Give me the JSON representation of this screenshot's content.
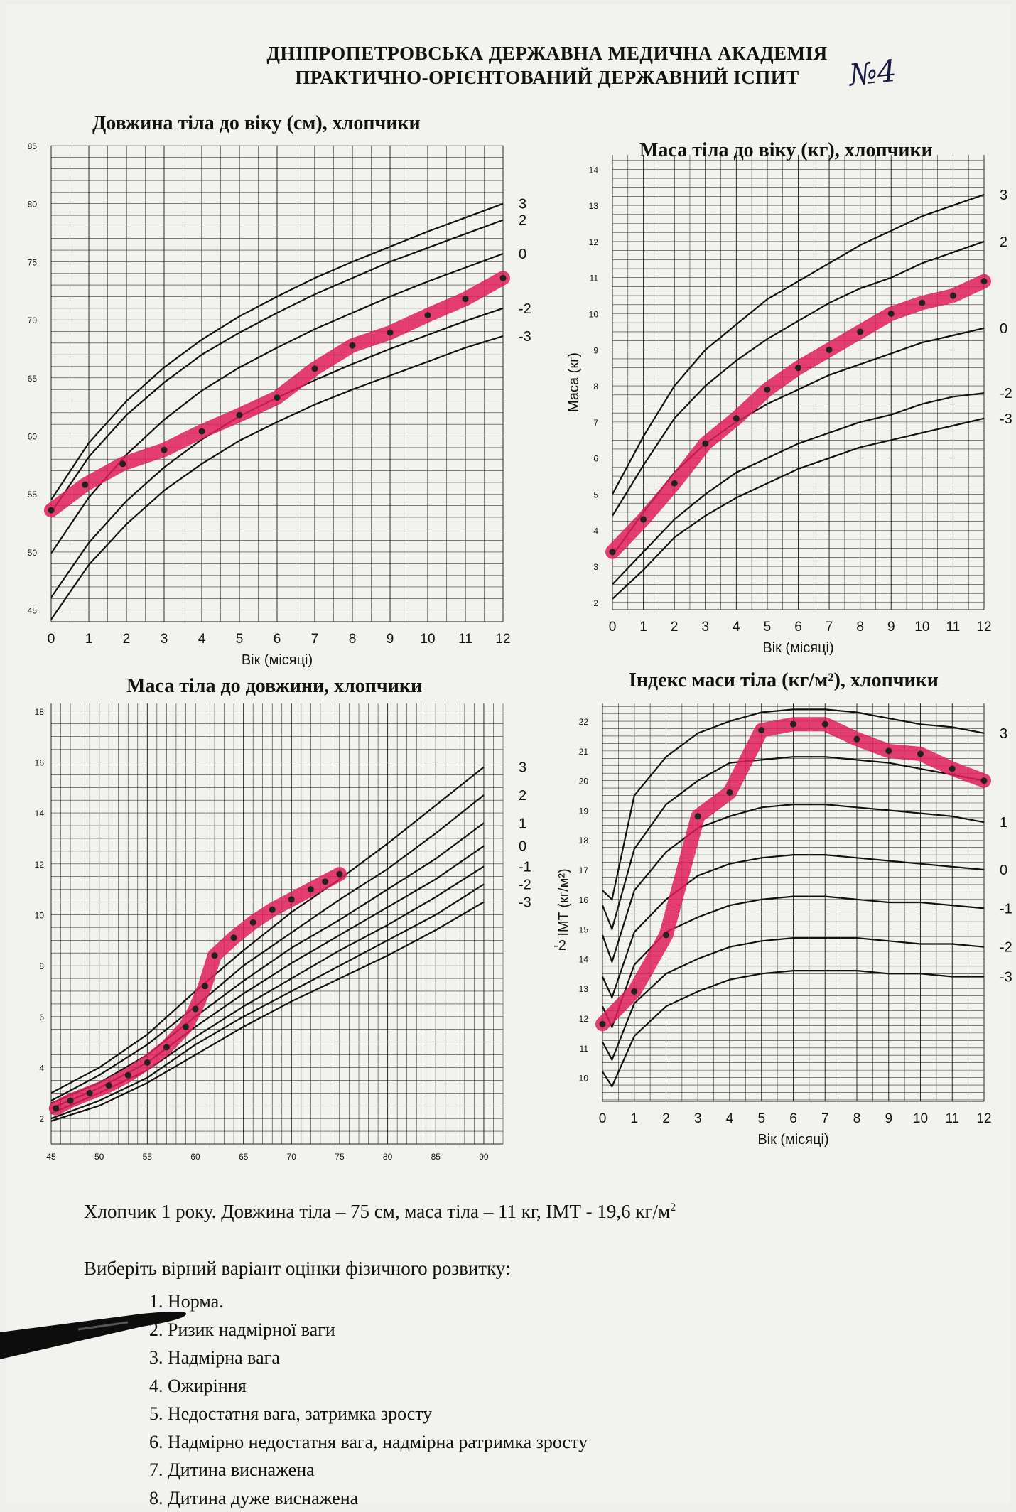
{
  "header": {
    "line1": "ДНІПРОПЕТРОВСЬКА ДЕРЖАВНА МЕДИЧНА АКАДЕМІЯ",
    "line2": "ПРАКТИЧНО-ОРІЄНТОВАНИЙ ДЕРЖАВНИЙ ІСПИТ",
    "hand_mark": "№4"
  },
  "chart_data": [
    {
      "type": "line",
      "title": "Довжина тіла до віку (см), хлопчики",
      "xlabel": "Вік (місяці)",
      "ylabel": "",
      "xlim": [
        0,
        12
      ],
      "ylim": [
        44,
        85
      ],
      "x_ticks": [
        "0",
        "1",
        "2",
        "3",
        "4",
        "5",
        "6",
        "7",
        "8",
        "9",
        "10",
        "11",
        "12"
      ],
      "y_ticks": [
        "45",
        "50",
        "55",
        "60",
        "65",
        "70",
        "75",
        "80",
        "85"
      ],
      "x_tick_values": [
        0,
        1,
        2,
        3,
        4,
        5,
        6,
        7,
        8,
        9,
        10,
        11,
        12
      ],
      "y_tick_values": [
        45,
        50,
        55,
        60,
        65,
        70,
        75,
        80,
        85
      ],
      "grid": true,
      "x_minor_step": 0.5,
      "y_minor_step": 1,
      "series": [
        {
          "name": "3",
          "x": [
            0,
            1,
            2,
            3,
            4,
            5,
            6,
            7,
            8,
            9,
            10,
            11,
            12
          ],
          "y": [
            54.5,
            59.4,
            63.0,
            65.9,
            68.3,
            70.3,
            72.0,
            73.6,
            75.0,
            76.3,
            77.6,
            78.8,
            80.0
          ]
        },
        {
          "name": "2",
          "x": [
            0,
            1,
            2,
            3,
            4,
            5,
            6,
            7,
            8,
            9,
            10,
            11,
            12
          ],
          "y": [
            53.4,
            58.2,
            61.8,
            64.6,
            67.0,
            68.9,
            70.6,
            72.2,
            73.6,
            75.0,
            76.2,
            77.4,
            78.6
          ]
        },
        {
          "name": "0",
          "x": [
            0,
            1,
            2,
            3,
            4,
            5,
            6,
            7,
            8,
            9,
            10,
            11,
            12
          ],
          "y": [
            49.9,
            54.7,
            58.4,
            61.4,
            63.9,
            65.9,
            67.6,
            69.2,
            70.6,
            72.0,
            73.3,
            74.5,
            75.7
          ]
        },
        {
          "name": "-2",
          "x": [
            0,
            1,
            2,
            3,
            4,
            5,
            6,
            7,
            8,
            9,
            10,
            11,
            12
          ],
          "y": [
            46.1,
            50.8,
            54.4,
            57.3,
            59.7,
            61.7,
            63.3,
            64.8,
            66.2,
            67.5,
            68.7,
            69.9,
            71.0
          ]
        },
        {
          "name": "-3",
          "x": [
            0,
            1,
            2,
            3,
            4,
            5,
            6,
            7,
            8,
            9,
            10,
            11,
            12
          ],
          "y": [
            44.2,
            48.9,
            52.4,
            55.3,
            57.6,
            59.6,
            61.2,
            62.7,
            64.0,
            65.2,
            66.4,
            67.6,
            68.6
          ]
        },
        {
          "name": "",
          "highlight": true,
          "x": [
            0,
            0.9,
            1.9,
            3.0,
            4.0,
            5.0,
            6.0,
            7.0,
            8.0,
            9.0,
            10.0,
            11.0,
            12.0
          ],
          "y": [
            53.6,
            55.8,
            57.6,
            58.8,
            60.4,
            61.8,
            63.3,
            65.8,
            67.8,
            68.9,
            70.4,
            71.8,
            73.6
          ]
        }
      ]
    },
    {
      "type": "line",
      "title": "Маса тіла до віку (кг), хлопчики",
      "xlabel": "Вік (місяці)",
      "ylabel": "Маса (кг)",
      "xlim": [
        0,
        12
      ],
      "ylim": [
        1.8,
        14.4
      ],
      "x_ticks": [
        "0",
        "1",
        "2",
        "3",
        "4",
        "5",
        "6",
        "7",
        "8",
        "9",
        "10",
        "11",
        "12"
      ],
      "y_ticks": [
        "2",
        "3",
        "4",
        "5",
        "6",
        "7",
        "8",
        "9",
        "10",
        "11",
        "12",
        "13",
        "14"
      ],
      "x_tick_values": [
        0,
        1,
        2,
        3,
        4,
        5,
        6,
        7,
        8,
        9,
        10,
        11,
        12
      ],
      "y_tick_values": [
        2,
        3,
        4,
        5,
        6,
        7,
        8,
        9,
        10,
        11,
        12,
        13,
        14
      ],
      "grid": true,
      "x_minor_step": 0.5,
      "y_minor_step": 0.25,
      "series": [
        {
          "name": "3",
          "x": [
            0,
            1,
            2,
            3,
            4,
            5,
            6,
            7,
            8,
            9,
            10,
            11,
            12
          ],
          "y": [
            5.0,
            6.6,
            8.0,
            9.0,
            9.7,
            10.4,
            10.9,
            11.4,
            11.9,
            12.3,
            12.7,
            13.0,
            13.3
          ]
        },
        {
          "name": "2",
          "x": [
            0,
            1,
            2,
            3,
            4,
            5,
            6,
            7,
            8,
            9,
            10,
            11,
            12
          ],
          "y": [
            4.4,
            5.8,
            7.1,
            8.0,
            8.7,
            9.3,
            9.8,
            10.3,
            10.7,
            11.0,
            11.4,
            11.7,
            12.0
          ]
        },
        {
          "name": "0",
          "x": [
            0,
            1,
            2,
            3,
            4,
            5,
            6,
            7,
            8,
            9,
            10,
            11,
            12
          ],
          "y": [
            3.3,
            4.5,
            5.6,
            6.4,
            7.0,
            7.5,
            7.9,
            8.3,
            8.6,
            8.9,
            9.2,
            9.4,
            9.6
          ]
        },
        {
          "name": "-2",
          "x": [
            0,
            1,
            2,
            3,
            4,
            5,
            6,
            7,
            8,
            9,
            10,
            11,
            12
          ],
          "y": [
            2.5,
            3.4,
            4.3,
            5.0,
            5.6,
            6.0,
            6.4,
            6.7,
            7.0,
            7.2,
            7.5,
            7.7,
            7.8
          ]
        },
        {
          "name": "-3",
          "x": [
            0,
            1,
            2,
            3,
            4,
            5,
            6,
            7,
            8,
            9,
            10,
            11,
            12
          ],
          "y": [
            2.1,
            2.9,
            3.8,
            4.4,
            4.9,
            5.3,
            5.7,
            6.0,
            6.3,
            6.5,
            6.7,
            6.9,
            7.1
          ]
        },
        {
          "name": "",
          "highlight": true,
          "x": [
            0,
            1,
            2,
            3,
            4,
            5,
            6,
            7,
            8,
            9,
            10,
            11,
            12
          ],
          "y": [
            3.4,
            4.3,
            5.3,
            6.4,
            7.1,
            7.9,
            8.5,
            9.0,
            9.5,
            10.0,
            10.3,
            10.5,
            10.9
          ]
        }
      ]
    },
    {
      "type": "line",
      "title": "Маса тіла до довжини, хлопчики",
      "xlabel": "",
      "ylabel": "",
      "xlim": [
        45,
        92
      ],
      "ylim": [
        1.0,
        18.3
      ],
      "x_ticks": [
        "45",
        "50",
        "55",
        "60",
        "65",
        "70",
        "75",
        "80",
        "85",
        "90"
      ],
      "y_ticks": [
        "2",
        "4",
        "6",
        "8",
        "10",
        "12",
        "14",
        "16",
        "18"
      ],
      "x_tick_values": [
        45,
        50,
        55,
        60,
        65,
        70,
        75,
        80,
        85,
        90
      ],
      "y_tick_values": [
        2,
        4,
        6,
        8,
        10,
        12,
        14,
        16,
        18
      ],
      "grid": true,
      "x_minor_step": 1,
      "y_minor_step": 0.5,
      "series": [
        {
          "name": "3",
          "x": [
            45,
            50,
            55,
            60,
            65,
            70,
            75,
            80,
            85,
            90
          ],
          "y": [
            3.0,
            4.0,
            5.3,
            7.0,
            8.6,
            10.1,
            11.4,
            12.8,
            14.3,
            15.8
          ]
        },
        {
          "name": "2",
          "x": [
            45,
            50,
            55,
            60,
            65,
            70,
            75,
            80,
            85,
            90
          ],
          "y": [
            2.7,
            3.7,
            4.9,
            6.4,
            8.0,
            9.3,
            10.6,
            11.8,
            13.2,
            14.7
          ]
        },
        {
          "name": "1",
          "x": [
            45,
            50,
            55,
            60,
            65,
            70,
            75,
            80,
            85,
            90
          ],
          "y": [
            2.6,
            3.4,
            4.5,
            6.0,
            7.4,
            8.7,
            9.8,
            11.0,
            12.2,
            13.6
          ]
        },
        {
          "name": "0",
          "x": [
            45,
            50,
            55,
            60,
            65,
            70,
            75,
            80,
            85,
            90
          ],
          "y": [
            2.4,
            3.2,
            4.2,
            5.6,
            6.9,
            8.1,
            9.2,
            10.3,
            11.4,
            12.7
          ]
        },
        {
          "name": "-1",
          "x": [
            45,
            50,
            55,
            60,
            65,
            70,
            75,
            80,
            85,
            90
          ],
          "y": [
            2.2,
            3.0,
            3.9,
            5.2,
            6.4,
            7.5,
            8.6,
            9.6,
            10.7,
            11.9
          ]
        },
        {
          "name": "-2",
          "x": [
            45,
            50,
            55,
            60,
            65,
            70,
            75,
            80,
            85,
            90
          ],
          "y": [
            2.0,
            2.7,
            3.6,
            4.9,
            6.0,
            7.0,
            8.0,
            9.0,
            10.0,
            11.2
          ]
        },
        {
          "name": "-3",
          "x": [
            45,
            50,
            55,
            60,
            65,
            70,
            75,
            80,
            85,
            90
          ],
          "y": [
            1.9,
            2.5,
            3.4,
            4.5,
            5.6,
            6.6,
            7.5,
            8.4,
            9.4,
            10.5
          ]
        },
        {
          "name": "",
          "highlight": true,
          "x": [
            45.5,
            47,
            49,
            51,
            53,
            55,
            57,
            59,
            60,
            61,
            62,
            64,
            66,
            68,
            70,
            72,
            73.5,
            75
          ],
          "y": [
            2.4,
            2.7,
            3.0,
            3.3,
            3.7,
            4.2,
            4.8,
            5.6,
            6.3,
            7.2,
            8.4,
            9.1,
            9.7,
            10.2,
            10.6,
            11.0,
            11.3,
            11.6
          ]
        }
      ]
    },
    {
      "type": "line",
      "title": "Індекс маси тіла (кг/м²), хлопчики",
      "xlabel": "Вік (місяці)",
      "ylabel": "ІМТ (кг/м²)",
      "xlim": [
        0,
        12
      ],
      "ylim": [
        9.2,
        22.6
      ],
      "x_ticks": [
        "0",
        "1",
        "2",
        "3",
        "4",
        "5",
        "6",
        "7",
        "8",
        "9",
        "10",
        "11",
        "12"
      ],
      "y_ticks": [
        "10",
        "11",
        "12",
        "13",
        "14",
        "15",
        "16",
        "17",
        "18",
        "19",
        "20",
        "21",
        "22"
      ],
      "x_tick_values": [
        0,
        1,
        2,
        3,
        4,
        5,
        6,
        7,
        8,
        9,
        10,
        11,
        12
      ],
      "y_tick_values": [
        10,
        11,
        12,
        13,
        14,
        15,
        16,
        17,
        18,
        19,
        20,
        21,
        22
      ],
      "grid": true,
      "x_minor_step": 0.5,
      "y_minor_step": 0.25,
      "side_mark": "-2",
      "series": [
        {
          "name": "3",
          "x": [
            0,
            0.3,
            1,
            2,
            3,
            4,
            5,
            6,
            7,
            8,
            9,
            10,
            11,
            12
          ],
          "y": [
            16.3,
            16.0,
            19.5,
            20.8,
            21.6,
            22.0,
            22.3,
            22.4,
            22.4,
            22.3,
            22.1,
            21.9,
            21.8,
            21.6
          ]
        },
        {
          "name": "",
          "x": [
            0,
            0.3,
            1,
            2,
            3,
            4,
            5,
            6,
            7,
            8,
            9,
            10,
            11,
            12
          ],
          "y": [
            15.8,
            15.0,
            17.7,
            19.2,
            20.0,
            20.6,
            20.7,
            20.8,
            20.8,
            20.7,
            20.6,
            20.4,
            20.2,
            20.0
          ]
        },
        {
          "name": "1",
          "x": [
            0,
            0.3,
            1,
            2,
            3,
            4,
            5,
            6,
            7,
            8,
            9,
            10,
            11,
            12
          ],
          "y": [
            14.8,
            13.9,
            16.3,
            17.6,
            18.4,
            18.8,
            19.1,
            19.2,
            19.2,
            19.1,
            19.0,
            18.9,
            18.8,
            18.6
          ]
        },
        {
          "name": "0",
          "x": [
            0,
            0.3,
            1,
            2,
            3,
            4,
            5,
            6,
            7,
            8,
            9,
            10,
            11,
            12
          ],
          "y": [
            13.4,
            12.7,
            14.9,
            16.0,
            16.8,
            17.2,
            17.4,
            17.5,
            17.5,
            17.4,
            17.3,
            17.2,
            17.1,
            17.0
          ]
        },
        {
          "name": "-1",
          "x": [
            0,
            0.3,
            1,
            2,
            3,
            4,
            5,
            6,
            7,
            8,
            9,
            10,
            11,
            12
          ],
          "y": [
            12.4,
            11.7,
            13.8,
            14.9,
            15.4,
            15.8,
            16.0,
            16.1,
            16.1,
            16.0,
            15.9,
            15.9,
            15.8,
            15.7
          ]
        },
        {
          "name": "-2",
          "x": [
            0,
            0.3,
            1,
            2,
            3,
            4,
            5,
            6,
            7,
            8,
            9,
            10,
            11,
            12
          ],
          "y": [
            11.2,
            10.6,
            12.5,
            13.5,
            14.0,
            14.4,
            14.6,
            14.7,
            14.7,
            14.7,
            14.6,
            14.5,
            14.5,
            14.4
          ]
        },
        {
          "name": "-3",
          "x": [
            0,
            0.3,
            1,
            2,
            3,
            4,
            5,
            6,
            7,
            8,
            9,
            10,
            11,
            12
          ],
          "y": [
            10.2,
            9.7,
            11.4,
            12.4,
            12.9,
            13.3,
            13.5,
            13.6,
            13.6,
            13.6,
            13.5,
            13.5,
            13.4,
            13.4
          ]
        },
        {
          "name": "",
          "highlight": true,
          "x": [
            0,
            1,
            2,
            3,
            4,
            5,
            6,
            7,
            8,
            9,
            10,
            11,
            12
          ],
          "y": [
            11.8,
            12.9,
            14.8,
            18.8,
            19.6,
            21.7,
            21.9,
            21.9,
            21.4,
            21.0,
            20.9,
            20.4,
            20.0
          ]
        }
      ]
    }
  ],
  "question": {
    "case": "Хлопчик 1 року. Довжина тіла – 75 см, маса тіла – 11 кг, ІМТ - 19,6 кг/м",
    "case_sup": "2",
    "prompt": "Виберіть вірний варіант оцінки фізичного розвитку:",
    "options": [
      "1.   Норма.",
      "2.   Ризик надмірної ваги",
      "3.   Надмірна вага",
      "4.   Ожиріння",
      "5.   Недостатня вага, затримка зросту",
      "6.   Надмірно недостатня вага, надмірна ратримка зросту",
      "7.   Дитина  виснажена",
      "8.   Дитина дуже виснажена"
    ]
  },
  "colors": {
    "highlight": "#e01e5a",
    "ink": "#111111",
    "paper": "#f2f2ef"
  }
}
